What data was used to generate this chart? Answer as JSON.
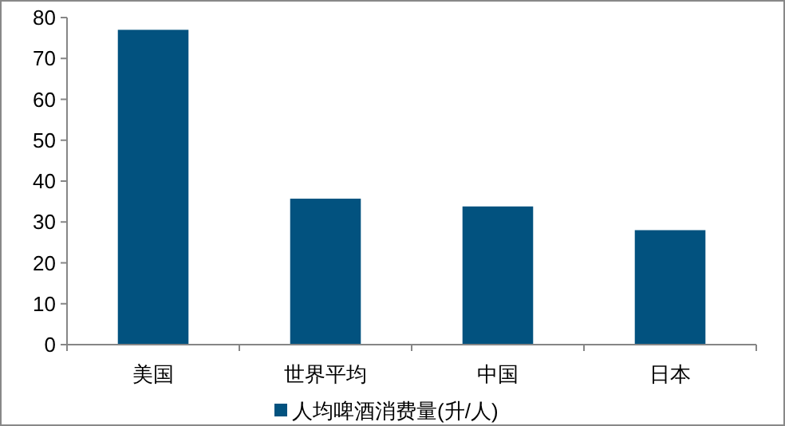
{
  "chart_data": {
    "type": "bar",
    "categories": [
      "美国",
      "世界平均",
      "中国",
      "日本"
    ],
    "series": [
      {
        "name": "人均啤酒消费量(升/人)",
        "color": "#02527f",
        "values": [
          77,
          35.7,
          33.8,
          28
        ]
      }
    ],
    "ylim": [
      0,
      80
    ],
    "yticks": [
      0,
      10,
      20,
      30,
      40,
      50,
      60,
      70,
      80
    ],
    "grid": false,
    "legend": "bottom"
  }
}
